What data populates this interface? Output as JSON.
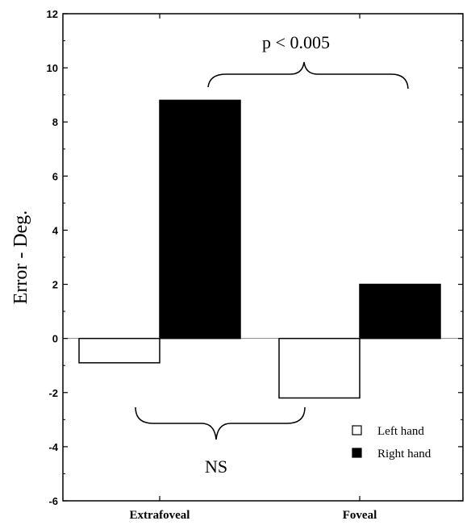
{
  "chart_data": {
    "type": "bar",
    "categories": [
      "Extrafoveal",
      "Foveal"
    ],
    "series": [
      {
        "name": "Left hand",
        "values": [
          -0.9,
          -2.2
        ],
        "color": "#ffffff"
      },
      {
        "name": "Right hand",
        "values": [
          8.8,
          2.0
        ],
        "color": "#000000"
      }
    ],
    "ylabel": "Error - Deg.",
    "ylim": [
      -6,
      12
    ],
    "yticks": [
      -6,
      -4,
      -2,
      0,
      2,
      4,
      6,
      8,
      10,
      12
    ],
    "legend_position": "bottom-right",
    "grid": false,
    "annotations": {
      "top_bracket": "p < 0.005",
      "bottom_bracket": "NS"
    }
  }
}
